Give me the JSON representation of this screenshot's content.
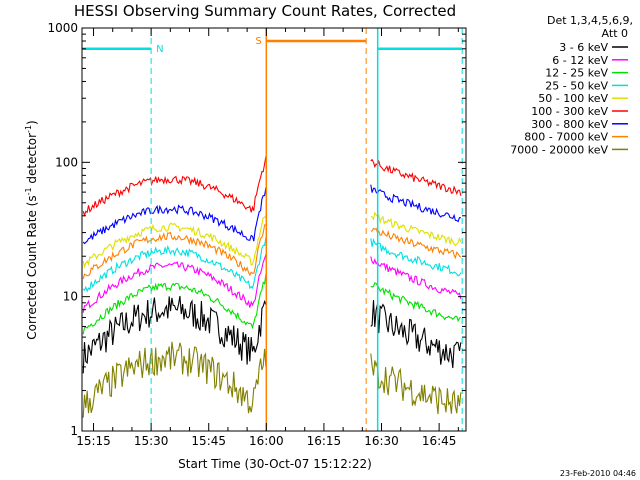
{
  "chart_data": {
    "type": "line",
    "title": "HESSI Observing Summary Count Rates, Corrected",
    "xlabel": "Start Time (30-Oct-07 15:12:22)",
    "ylabel_main": "Corrected Count Rate (s",
    "ylabel_sup1": "-1",
    "ylabel_mid": " detector",
    "ylabel_sup2": "-1",
    "ylabel_end": ")",
    "yscale": "log",
    "ylim": [
      1,
      1000
    ],
    "xlim": [
      "15:12",
      "16:52"
    ],
    "x_ticks": [
      "15:15",
      "15:30",
      "15:45",
      "16:00",
      "16:15",
      "16:30",
      "16:45"
    ],
    "y_ticks": [
      "1",
      "10",
      "100",
      "1000"
    ],
    "legend_title_line1": "Det 1,3,4,5,6,9,",
    "legend_title_line2": "Att 0",
    "timestamp": "23-Feb-2010 04:46",
    "annotations": [
      {
        "text": "N",
        "color": "#00e0e0"
      },
      {
        "text": "S",
        "color": "#ff8000"
      }
    ],
    "markers": {
      "night": {
        "color": "#00e0e0",
        "segments": [
          [
            "15:12",
            "15:30"
          ],
          [
            "16:29",
            "16:51"
          ]
        ],
        "level": 700,
        "dashed_at": [
          "15:30",
          "16:51"
        ],
        "solid_at": [
          "16:29"
        ]
      },
      "saa": {
        "color": "#ff8000",
        "segment": [
          "16:00",
          "16:26"
        ],
        "level": 800,
        "solid_at": [
          "16:00"
        ],
        "dashed_at": [
          "16:26"
        ]
      }
    },
    "data_gap": [
      "16:01",
      "16:27"
    ],
    "series": [
      {
        "name": "3 - 6 keV",
        "color": "#000000",
        "pre_start": 3.5,
        "pre_peak": 8,
        "post_start": 8,
        "post_end": 3.5
      },
      {
        "name": "6 - 12 keV",
        "color": "#ff00ff",
        "pre_start": 8,
        "pre_peak": 17,
        "post_start": 20,
        "post_end": 10
      },
      {
        "name": "12 - 25 keV",
        "color": "#00e000",
        "pre_start": 5.5,
        "pre_peak": 12,
        "post_start": 13,
        "post_end": 6.5
      },
      {
        "name": "25 - 50 keV",
        "color": "#00e0e0",
        "pre_start": 11,
        "pre_peak": 22,
        "post_start": 26,
        "post_end": 15
      },
      {
        "name": "50 - 100 keV",
        "color": "#e0e000",
        "pre_start": 17,
        "pre_peak": 33,
        "post_start": 42,
        "post_end": 25
      },
      {
        "name": "100 - 300 keV",
        "color": "#ff0000",
        "pre_start": 42,
        "pre_peak": 75,
        "post_start": 105,
        "post_end": 60
      },
      {
        "name": "300 - 800 keV",
        "color": "#0000ff",
        "pre_start": 25,
        "pre_peak": 45,
        "post_start": 65,
        "post_end": 38
      },
      {
        "name": "800 - 7000 keV",
        "color": "#ff8000",
        "pre_start": 14,
        "pre_peak": 28,
        "post_start": 33,
        "post_end": 20
      },
      {
        "name": "7000 - 20000 keV",
        "color": "#808000",
        "pre_start": 1.5,
        "pre_peak": 3.5,
        "post_start": 3,
        "post_end": 1.5
      }
    ]
  }
}
